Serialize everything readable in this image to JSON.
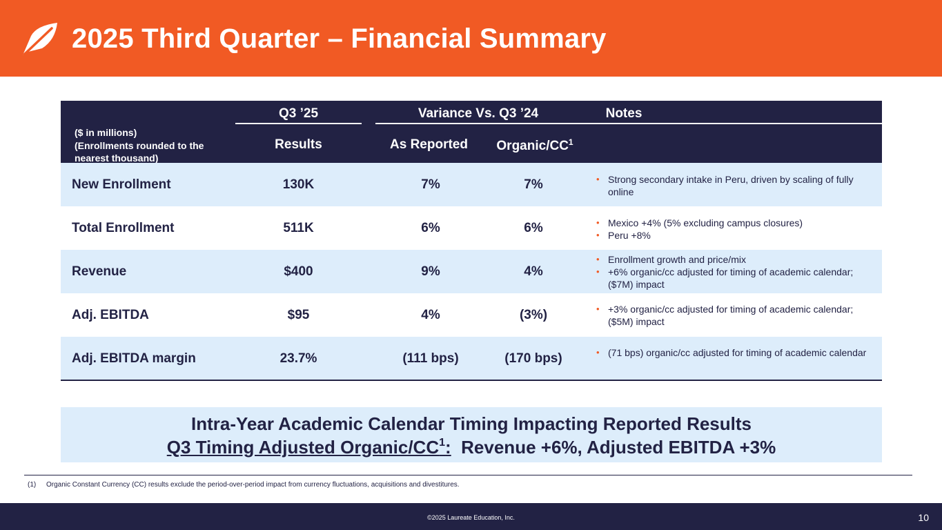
{
  "header": {
    "title": "2025 Third Quarter – Financial Summary",
    "logo_icon": "leaf-logo-icon",
    "background_color": "#f15a24"
  },
  "table": {
    "units_lines": [
      "($ in millions)",
      "(Enrollments rounded to the",
      "nearest thousand)"
    ],
    "group_headers": {
      "q3": "Q3 ’25",
      "variance": "Variance Vs. Q3 ’24",
      "notes": "Notes"
    },
    "sub_headers": {
      "results": "Results",
      "as_reported": "As Reported",
      "organic": "Organic/CC",
      "organic_footnote": "1"
    },
    "rows": [
      {
        "label": "New Enrollment",
        "results": "130K",
        "as_reported": "7%",
        "organic": "7%",
        "notes": [
          "Strong secondary intake in Peru, driven by scaling of fully online"
        ]
      },
      {
        "label": "Total Enrollment",
        "results": "511K",
        "as_reported": "6%",
        "organic": "6%",
        "notes": [
          "Mexico +4% (5% excluding campus closures)",
          "Peru +8%"
        ]
      },
      {
        "label": "Revenue",
        "results": "$400",
        "as_reported": "9%",
        "organic": "4%",
        "notes": [
          "Enrollment growth and price/mix",
          "+6% organic/cc adjusted for timing of academic calendar; ($7M) impact"
        ]
      },
      {
        "label": "Adj. EBITDA",
        "results": "$95",
        "as_reported": "4%",
        "organic": "(3%)",
        "notes": [
          "+3% organic/cc adjusted for timing of academic calendar; ($5M) impact"
        ]
      },
      {
        "label": "Adj. EBITDA margin",
        "results": "23.7%",
        "as_reported": "(111 bps)",
        "organic": "(170 bps)",
        "notes": [
          "(71 bps) organic/cc adjusted for timing of academic calendar"
        ]
      }
    ]
  },
  "callout": {
    "line1": "Intra-Year Academic Calendar Timing Impacting Reported Results",
    "line2_underlined": "Q3 Timing Adjusted Organic/CC",
    "line2_footnote": "1",
    "line2_colon": ":",
    "line2_rest": "  Revenue +6%, Adjusted EBITDA +3%"
  },
  "footnote": {
    "number": "(1)",
    "text": "Organic Constant Currency (CC) results exclude the period-over-period impact from currency fluctuations, acquisitions and divestitures."
  },
  "footer": {
    "copyright": "©2025 Laureate Education, Inc.",
    "page_number": "10"
  },
  "colors": {
    "accent_orange": "#f15a24",
    "navy": "#222244",
    "row_shade": "#ddedfb"
  }
}
